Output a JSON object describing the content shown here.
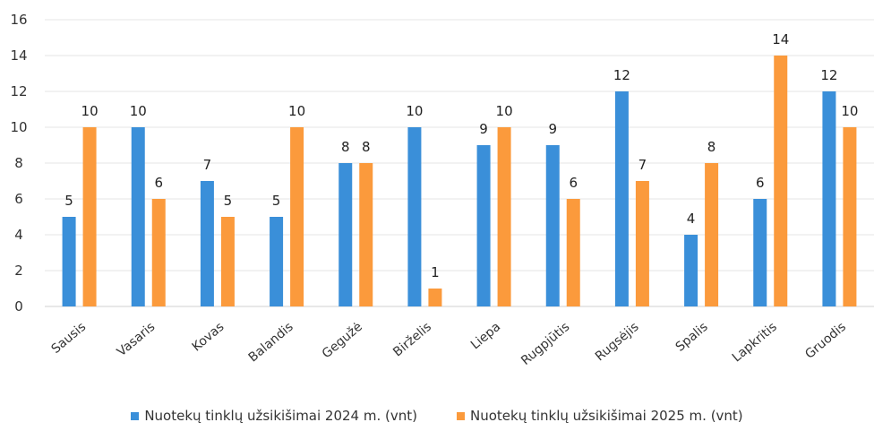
{
  "chart_data": {
    "type": "bar",
    "categories": [
      "Sausis",
      "Vasaris",
      "Kovas",
      "Balandis",
      "Gegužė",
      "Birželis",
      "Liepa",
      "Rugpjūtis",
      "Rugsėjis",
      "Spalis",
      "Lapkritis",
      "Gruodis"
    ],
    "series": [
      {
        "name": "Nuotekų tinklų užsikišimai 2024 m. (vnt)",
        "color": "#3a8fd9",
        "values": [
          5,
          10,
          7,
          5,
          8,
          10,
          9,
          9,
          12,
          4,
          6,
          12
        ]
      },
      {
        "name": "Nuotekų tinklų užsikišimai 2025 m. (vnt)",
        "color": "#fb9a3c",
        "values": [
          10,
          6,
          5,
          10,
          8,
          1,
          10,
          6,
          7,
          8,
          14,
          10
        ]
      }
    ],
    "ylim": [
      0,
      16
    ],
    "yticks": [
      0,
      2,
      4,
      6,
      8,
      10,
      12,
      14,
      16
    ],
    "grid": true,
    "legend_position": "bottom",
    "xlabel": "",
    "ylabel": "",
    "title": ""
  }
}
